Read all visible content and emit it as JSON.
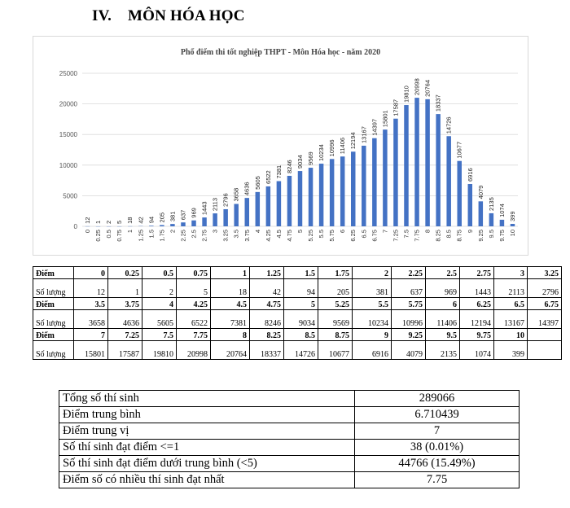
{
  "heading": {
    "number": "IV.",
    "title": "MÔN HÓA HỌC"
  },
  "chart_data": {
    "type": "bar",
    "title": "Phổ điểm thi tốt nghiệp THPT - Môn Hóa học - năm 2020",
    "xlabel": "",
    "ylabel": "",
    "ylim": [
      0,
      25000
    ],
    "yticks": [
      0,
      5000,
      10000,
      15000,
      20000,
      25000
    ],
    "grid": true,
    "color": "#4472c4",
    "categories": [
      "0",
      "0.25",
      "0.5",
      "0.75",
      "1",
      "1.25",
      "1.5",
      "1.75",
      "2",
      "2.25",
      "2.5",
      "2.75",
      "3",
      "3.25",
      "3.5",
      "3.75",
      "4",
      "4.25",
      "4.5",
      "4.75",
      "5",
      "5.25",
      "5.5",
      "5.75",
      "6",
      "6.25",
      "6.5",
      "6.75",
      "7",
      "7.25",
      "7.5",
      "7.75",
      "8",
      "8.25",
      "8.5",
      "8.75",
      "9",
      "9.25",
      "9.5",
      "9.75",
      "10"
    ],
    "values": [
      12,
      1,
      2,
      5,
      18,
      42,
      94,
      205,
      381,
      637,
      969,
      1443,
      2113,
      2796,
      3658,
      4636,
      5605,
      6522,
      7381,
      8246,
      9034,
      9569,
      10234,
      10996,
      11406,
      12194,
      13167,
      14397,
      15801,
      17587,
      19810,
      20998,
      20764,
      18337,
      14726,
      10677,
      6916,
      4079,
      2135,
      1074,
      399
    ]
  },
  "dist_table": {
    "score_label": "Điểm",
    "count_label": "Số lượng",
    "rows": [
      {
        "scores": [
          "0",
          "0.25",
          "0.5",
          "0.75",
          "1",
          "1.25",
          "1.5",
          "1.75",
          "2",
          "2.25",
          "2.5",
          "2.75",
          "3",
          "3.25"
        ],
        "counts": [
          "12",
          "1",
          "2",
          "5",
          "18",
          "42",
          "94",
          "205",
          "381",
          "637",
          "969",
          "1443",
          "2113",
          "2796"
        ]
      },
      {
        "scores": [
          "3.5",
          "3.75",
          "4",
          "4.25",
          "4.5",
          "4.75",
          "5",
          "5.25",
          "5.5",
          "5.75",
          "6",
          "6.25",
          "6.5",
          "6.75"
        ],
        "counts": [
          "3658",
          "4636",
          "5605",
          "6522",
          "7381",
          "8246",
          "9034",
          "9569",
          "10234",
          "10996",
          "11406",
          "12194",
          "13167",
          "14397"
        ]
      },
      {
        "scores": [
          "7",
          "7.25",
          "7.5",
          "7.75",
          "8",
          "8.25",
          "8.5",
          "8.75",
          "9",
          "9.25",
          "9.5",
          "9.75",
          "10",
          ""
        ],
        "counts": [
          "15801",
          "17587",
          "19810",
          "20998",
          "20764",
          "18337",
          "14726",
          "10677",
          "6916",
          "4079",
          "2135",
          "1074",
          "399",
          ""
        ]
      }
    ]
  },
  "summary": [
    {
      "label": "Tổng số thí sinh",
      "value": "289066"
    },
    {
      "label": "Điểm trung bình",
      "value": "6.710439"
    },
    {
      "label": "Điểm trung vị",
      "value": "7"
    },
    {
      "label": "Số thí sinh đạt điểm <=1",
      "value": "38 (0.01%)"
    },
    {
      "label": "Số thí sinh đạt điểm dưới trung bình (<5)",
      "value": "44766 (15.49%)"
    },
    {
      "label": "Điểm số có nhiều thí sinh đạt nhất",
      "value": "7.75"
    }
  ]
}
